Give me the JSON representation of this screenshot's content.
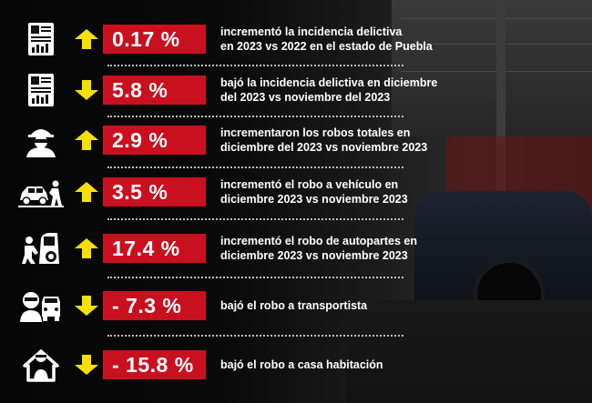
{
  "colors": {
    "accent_red": "#c8101f",
    "arrow_yellow": "#f5e000",
    "text": "#ffffff"
  },
  "rows": [
    {
      "icon": "report-chart-icon",
      "direction": "up",
      "value": "0.17 %",
      "lines": [
        "incrementó la incidencia delictiva",
        "en 2023 vs 2022 en el estado de Puebla"
      ]
    },
    {
      "icon": "report-chart-icon",
      "direction": "down",
      "value": "5.8 %",
      "lines": [
        "bajó la incidencia delictiva en diciembre",
        "del 2023 vs  noviembre del 2023"
      ]
    },
    {
      "icon": "masked-thief-icon",
      "direction": "up",
      "value": "2.9 %",
      "lines": [
        "incrementaron los  robos totales en",
        "diciembre del 2023 vs  noviembre 2023"
      ]
    },
    {
      "icon": "car-theft-icon",
      "direction": "up",
      "value": "3.5 %",
      "lines": [
        "incrementó el robo a vehículo en",
        "diciembre 2023 vs  noviembre 2023"
      ]
    },
    {
      "icon": "auto-parts-theft-icon",
      "direction": "up",
      "value": "17.4 %",
      "lines": [
        "incrementó el robo de autopartes en",
        "diciembre 2023 vs  noviembre 2023"
      ]
    },
    {
      "icon": "truck-robber-icon",
      "direction": "down",
      "value": "- 7.3 %",
      "lines": [
        "bajó el robo a transportista"
      ]
    },
    {
      "icon": "house-theft-icon",
      "direction": "down",
      "value": "- 15.8 %",
      "lines": [
        "bajó el robo a casa habitación"
      ]
    }
  ]
}
